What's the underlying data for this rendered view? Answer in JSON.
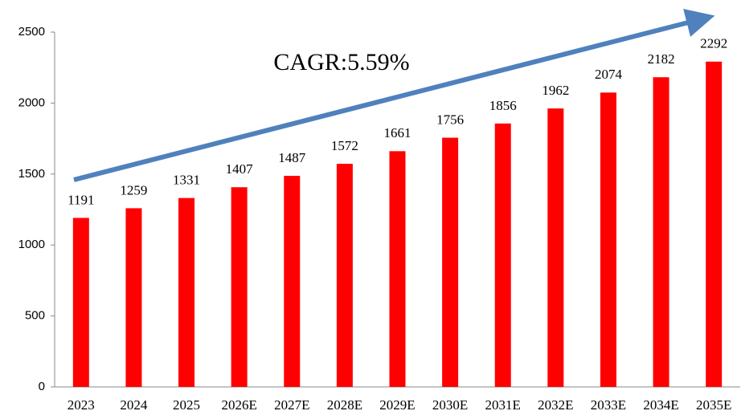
{
  "chart_data": {
    "type": "bar",
    "annotation": "CAGR:5.59%",
    "categories": [
      "2023",
      "2024",
      "2025",
      "2026E",
      "2027E",
      "2028E",
      "2029E",
      "2030E",
      "2031E",
      "2032E",
      "2033E",
      "2034E",
      "2035E"
    ],
    "values": [
      1191,
      1259,
      1331,
      1407,
      1487,
      1572,
      1661,
      1756,
      1856,
      1962,
      2074,
      2182,
      2292
    ],
    "color": "#ff0000",
    "ylim": [
      0,
      2500
    ],
    "yticks": [
      0,
      500,
      1000,
      1500,
      2000,
      2500
    ],
    "grid": false
  }
}
